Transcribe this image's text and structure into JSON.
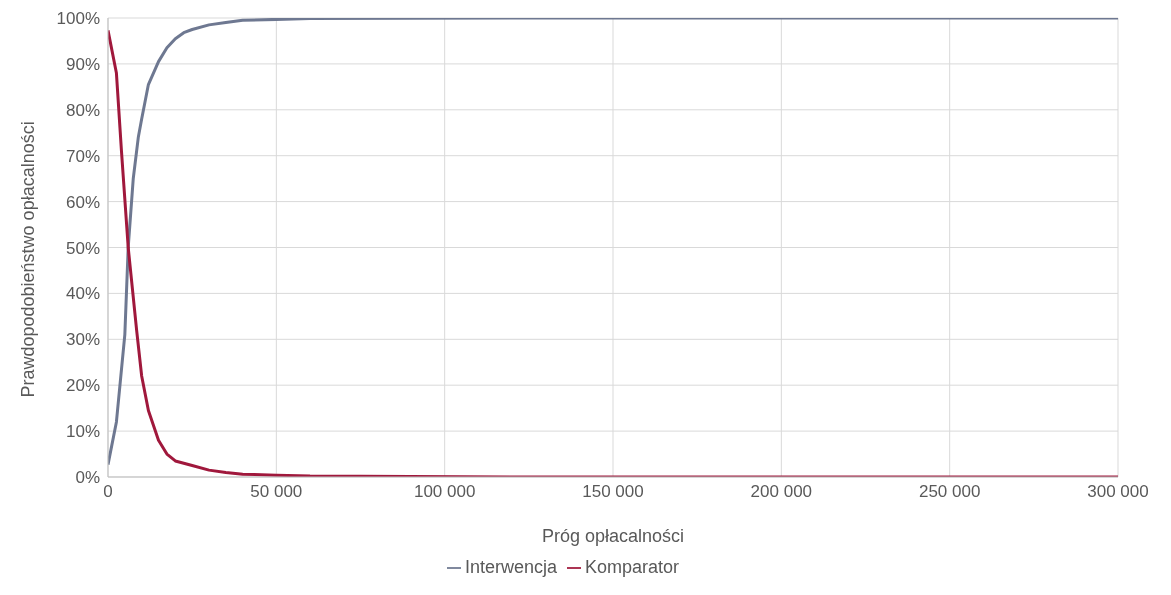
{
  "chart_data": {
    "type": "line",
    "xlabel": "Próg opłacalności",
    "ylabel": "Prawdopodobieństwo opłacalności",
    "xlim": [
      0,
      300000
    ],
    "xticks": [
      {
        "value": 0,
        "label": "0"
      },
      {
        "value": 50000,
        "label": "50 000"
      },
      {
        "value": 100000,
        "label": "100 000"
      },
      {
        "value": 150000,
        "label": "150 000"
      },
      {
        "value": 200000,
        "label": "200 000"
      },
      {
        "value": 250000,
        "label": "250 000"
      },
      {
        "value": 300000,
        "label": "300 000"
      }
    ],
    "ylim": [
      0,
      100
    ],
    "yticks": [
      {
        "value": 0,
        "label": "0%"
      },
      {
        "value": 10,
        "label": "10%"
      },
      {
        "value": 20,
        "label": "20%"
      },
      {
        "value": 30,
        "label": "30%"
      },
      {
        "value": 40,
        "label": "40%"
      },
      {
        "value": 50,
        "label": "50%"
      },
      {
        "value": 60,
        "label": "60%"
      },
      {
        "value": 70,
        "label": "70%"
      },
      {
        "value": 80,
        "label": "80%"
      },
      {
        "value": 90,
        "label": "90%"
      },
      {
        "value": 100,
        "label": "100%"
      }
    ],
    "grid": true,
    "legend": "bottom",
    "marker": "none",
    "line_style": "solid",
    "series": [
      {
        "name": "Interwencja",
        "color": "#6e7891",
        "x": [
          0,
          2500,
          5000,
          6000,
          7500,
          9000,
          10000,
          12000,
          15000,
          17500,
          20000,
          22500,
          25000,
          30000,
          35000,
          40000,
          50000,
          60000,
          120000,
          300000
        ],
        "values": [
          2.7,
          12,
          31,
          50,
          65,
          74,
          78,
          85.5,
          90.5,
          93.5,
          95.5,
          96.8,
          97.5,
          98.5,
          99,
          99.5,
          99.7,
          99.9,
          100,
          100
        ]
      },
      {
        "name": "Komparator",
        "color": "#a0183c",
        "x": [
          0,
          2500,
          4000,
          6000,
          8500,
          10000,
          12000,
          15000,
          17500,
          20000,
          25000,
          30000,
          35000,
          40000,
          50000,
          60000,
          120000,
          300000
        ],
        "values": [
          97.3,
          88,
          71,
          50,
          32,
          22,
          14.5,
          8,
          5,
          3.5,
          2.5,
          1.5,
          1,
          0.6,
          0.4,
          0.2,
          0,
          0
        ]
      }
    ]
  }
}
